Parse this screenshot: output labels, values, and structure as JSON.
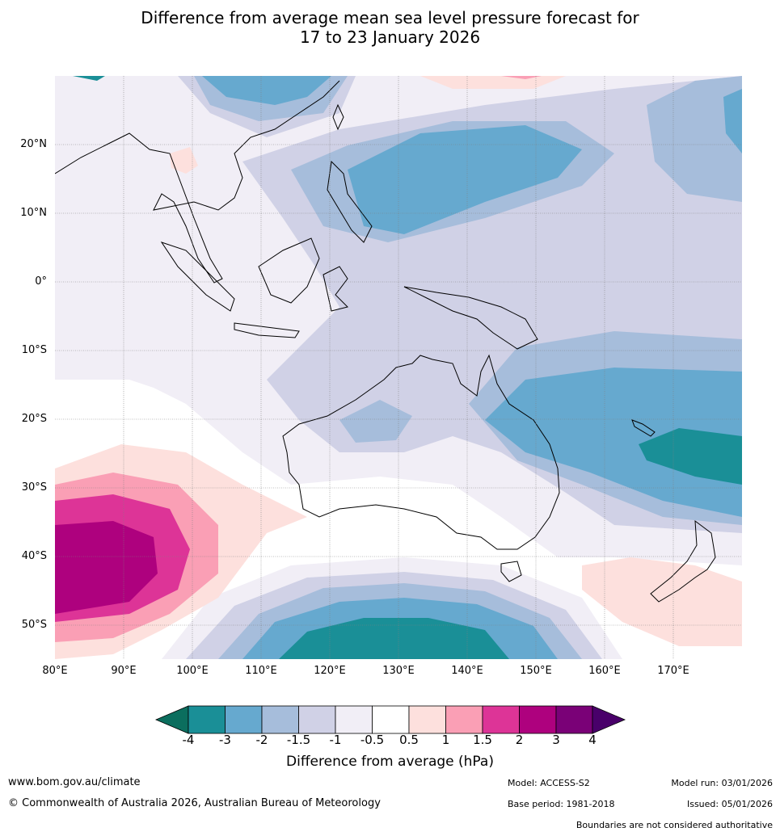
{
  "title_line1": "Difference from average mean sea level pressure forecast for",
  "title_line2": "17 to 23 January 2026",
  "map": {
    "lat_labels": [
      "20°N",
      "10°N",
      "0°",
      "10°S",
      "20°S",
      "30°S",
      "40°S",
      "50°S"
    ],
    "lon_labels": [
      "80°E",
      "90°E",
      "100°E",
      "110°E",
      "120°E",
      "130°E",
      "140°E",
      "150°E",
      "160°E",
      "170°E"
    ],
    "region": "Australia, Indian Ocean and western Pacific"
  },
  "colorbar": {
    "ticks": [
      "-4",
      "-3",
      "-2",
      "-1.5",
      "-1",
      "-0.5",
      "0.5",
      "1",
      "1.5",
      "2",
      "3",
      "4"
    ],
    "colors": [
      "#0b6e5e",
      "#1a8f97",
      "#66a9cf",
      "#a6bddb",
      "#d0d1e6",
      "#f1eef6",
      "#ffffff",
      "#fde0dd",
      "#fa9fb5",
      "#dd3497",
      "#ae017e",
      "#7a0177",
      "#49006a"
    ],
    "label": "Difference from average (hPa)"
  },
  "footer": {
    "website": "www.bom.gov.au/climate",
    "copyright": "© Commonwealth of Australia 2026, Australian Bureau of Meteorology",
    "model": "Model: ACCESS-S2",
    "base_period": "Base period: 1981-2018",
    "model_run": "Model run: 03/01/2026",
    "issued": "Issued: 05/01/2026",
    "disclaimer": "Boundaries are not considered authoritative"
  }
}
